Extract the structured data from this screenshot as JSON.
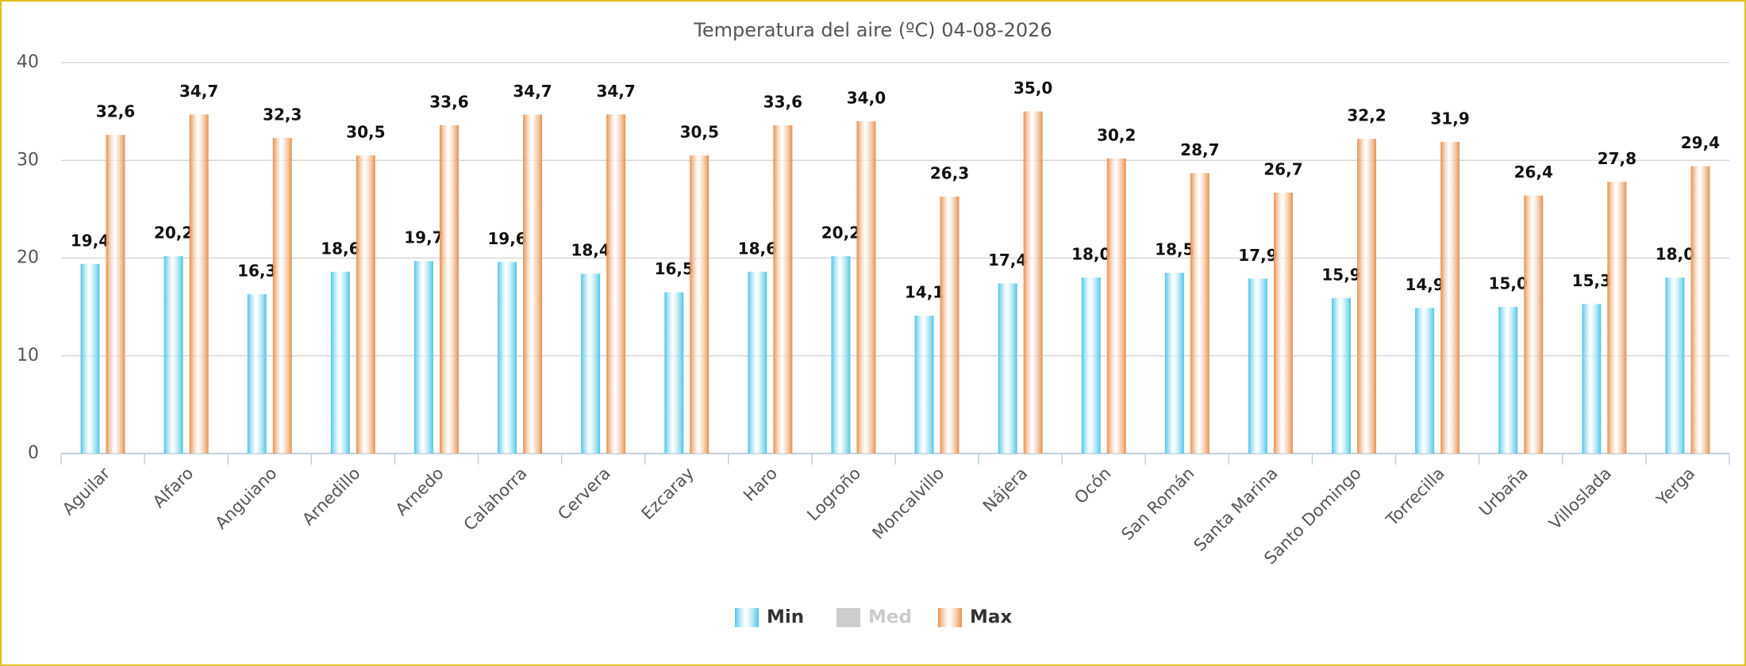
{
  "chart_data": {
    "type": "bar",
    "title": "Temperatura del aire (ºC) 04-08-2026",
    "categories": [
      "Aguilar",
      "Alfaro",
      "Anguiano",
      "Arnedillo",
      "Arnedo",
      "Calahorra",
      "Cervera",
      "Ezcaray",
      "Haro",
      "Logroño",
      "Moncalvillo",
      "Nájera",
      "Ocón",
      "San Román",
      "Santa Marina",
      "Santo Domingo",
      "Torrecilla",
      "Urbaña",
      "Villoslada",
      "Yerga"
    ],
    "series": [
      {
        "name": "Min",
        "color": "#4cc6e6",
        "values": [
          19.4,
          20.2,
          16.3,
          18.6,
          19.7,
          19.6,
          18.4,
          16.5,
          18.6,
          20.2,
          14.1,
          17.4,
          18.0,
          18.5,
          17.9,
          15.9,
          14.9,
          15.0,
          15.3,
          18.0
        ],
        "value_labels": [
          "19,4",
          "20,2",
          "16,3",
          "18,6",
          "19,7",
          "19,6",
          "18,4",
          "16,5",
          "18,6",
          "20,2",
          "14,1",
          "17,4",
          "18,0",
          "18,5",
          "17,9",
          "15,9",
          "14,9",
          "15,0",
          "15,3",
          "18,0"
        ]
      },
      {
        "name": "Med",
        "color": "#cccccc",
        "hidden": true,
        "values": [
          null,
          null,
          null,
          null,
          null,
          null,
          null,
          null,
          null,
          null,
          null,
          null,
          null,
          null,
          null,
          null,
          null,
          null,
          null,
          null
        ]
      },
      {
        "name": "Max",
        "color": "#e8904a",
        "values": [
          32.6,
          34.7,
          32.3,
          30.5,
          33.6,
          34.7,
          34.7,
          30.5,
          33.6,
          34.0,
          26.3,
          35.0,
          30.2,
          28.7,
          26.7,
          32.2,
          31.9,
          26.4,
          27.8,
          29.4
        ],
        "value_labels": [
          "32,6",
          "34,7",
          "32,3",
          "30,5",
          "33,6",
          "34,7",
          "34,7",
          "30,5",
          "33,6",
          "34,0",
          "26,3",
          "35,0",
          "30,2",
          "28,7",
          "26,7",
          "32,2",
          "31,9",
          "26,4",
          "27,8",
          "29,4"
        ]
      }
    ],
    "ylim": [
      0,
      40
    ],
    "yticks": [
      0,
      10,
      20,
      30,
      40
    ],
    "grid": true,
    "legend": "bottom"
  }
}
